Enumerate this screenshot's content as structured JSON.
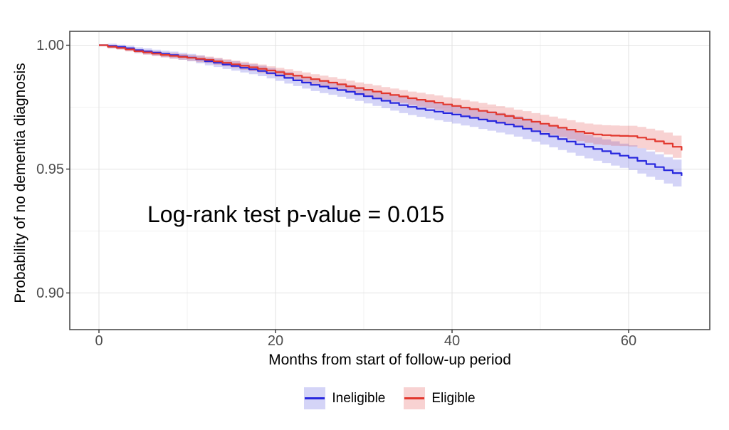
{
  "chart_data": {
    "type": "line",
    "subtype": "kaplan-meier-step-with-confidence-bands",
    "title": "",
    "xlabel": "Months from start of follow-up period",
    "ylabel": "Probability of no dementia diagnosis",
    "annotation": {
      "text": "Log-rank test p-value = 0.015",
      "p_value": 0.015
    },
    "grid": true,
    "legend_position": "bottom",
    "xlim": [
      -3.3,
      69.2
    ],
    "ylim": [
      0.885,
      1.006
    ],
    "x_ticks": [
      {
        "v": 0,
        "label": "0"
      },
      {
        "v": 20,
        "label": "20"
      },
      {
        "v": 40,
        "label": "40"
      },
      {
        "v": 60,
        "label": "60"
      }
    ],
    "y_ticks": [
      {
        "v": 1.0,
        "label": "1.00"
      },
      {
        "v": 0.95,
        "label": "0.95"
      },
      {
        "v": 0.9,
        "label": "0.90"
      }
    ],
    "x_minor": [
      10,
      30,
      50
    ],
    "y_minor": [
      0.975,
      0.925
    ],
    "x_months": {
      "start": 0,
      "step": 1,
      "count": 67
    },
    "series": [
      {
        "name": "Ineligible",
        "color": "#2727DE",
        "fill": "rgba(60,60,220,0.22)",
        "surv": [
          1.0,
          0.9997,
          0.9993,
          0.9988,
          0.998,
          0.9975,
          0.997,
          0.9965,
          0.996,
          0.9955,
          0.995,
          0.9943,
          0.9935,
          0.9929,
          0.9922,
          0.9916,
          0.9909,
          0.9903,
          0.9896,
          0.9887,
          0.9878,
          0.9868,
          0.9858,
          0.9849,
          0.984,
          0.9833,
          0.9826,
          0.9819,
          0.9812,
          0.9803,
          0.9794,
          0.9785,
          0.9776,
          0.9767,
          0.9758,
          0.9751,
          0.9744,
          0.9738,
          0.9732,
          0.9726,
          0.972,
          0.9713,
          0.9707,
          0.97,
          0.9694,
          0.9687,
          0.968,
          0.9672,
          0.9663,
          0.9653,
          0.9642,
          0.9632,
          0.9621,
          0.9611,
          0.96,
          0.959,
          0.9581,
          0.9572,
          0.9563,
          0.9554,
          0.9546,
          0.9533,
          0.952,
          0.9508,
          0.9495,
          0.9484,
          0.9473
        ],
        "ci_half": [
          0.0002,
          0.0009,
          0.0009,
          0.001,
          0.0011,
          0.0012,
          0.0012,
          0.0013,
          0.0014,
          0.0014,
          0.0015,
          0.0016,
          0.0016,
          0.0017,
          0.0018,
          0.0019,
          0.0019,
          0.002,
          0.0021,
          0.0021,
          0.0022,
          0.0023,
          0.0023,
          0.0024,
          0.0025,
          0.0026,
          0.0026,
          0.0027,
          0.0028,
          0.0028,
          0.0029,
          0.003,
          0.003,
          0.0031,
          0.0032,
          0.0033,
          0.0033,
          0.0034,
          0.0035,
          0.0035,
          0.0036,
          0.0037,
          0.0037,
          0.0038,
          0.0039,
          0.004,
          0.004,
          0.0041,
          0.0042,
          0.0042,
          0.0043,
          0.0044,
          0.0044,
          0.0045,
          0.0046,
          0.0047,
          0.0047,
          0.0048,
          0.0049,
          0.0049,
          0.005,
          0.0051,
          0.0051,
          0.0052,
          0.0053,
          0.0054,
          0.0054
        ]
      },
      {
        "name": "Eligible",
        "color": "#E2372D",
        "fill": "rgba(224,50,50,0.22)",
        "surv": [
          1.0,
          0.9994,
          0.9989,
          0.9983,
          0.9976,
          0.9971,
          0.9966,
          0.9961,
          0.9957,
          0.9953,
          0.9949,
          0.9945,
          0.9941,
          0.9935,
          0.9929,
          0.9923,
          0.9917,
          0.9911,
          0.9905,
          0.9898,
          0.9891,
          0.9884,
          0.9877,
          0.987,
          0.9863,
          0.9856,
          0.9849,
          0.9842,
          0.9834,
          0.9827,
          0.982,
          0.9813,
          0.9806,
          0.9799,
          0.9793,
          0.9786,
          0.978,
          0.9774,
          0.9768,
          0.9761,
          0.9755,
          0.9748,
          0.9742,
          0.9735,
          0.9729,
          0.9721,
          0.9714,
          0.9706,
          0.9699,
          0.9691,
          0.9683,
          0.9675,
          0.9667,
          0.9659,
          0.9651,
          0.9645,
          0.964,
          0.9637,
          0.9635,
          0.9634,
          0.9633,
          0.9627,
          0.962,
          0.9612,
          0.9603,
          0.959,
          0.9575
        ],
        "ci_half": [
          0.0002,
          0.0007,
          0.0007,
          0.0008,
          0.0008,
          0.0009,
          0.001,
          0.001,
          0.0011,
          0.0011,
          0.0012,
          0.0013,
          0.0013,
          0.0014,
          0.0014,
          0.0015,
          0.0016,
          0.0016,
          0.0017,
          0.0017,
          0.0018,
          0.0019,
          0.0019,
          0.002,
          0.002,
          0.0021,
          0.0022,
          0.0022,
          0.0023,
          0.0023,
          0.0024,
          0.0025,
          0.0025,
          0.0026,
          0.0026,
          0.0027,
          0.0028,
          0.0028,
          0.0029,
          0.0029,
          0.003,
          0.0031,
          0.0031,
          0.0032,
          0.0032,
          0.0033,
          0.0034,
          0.0034,
          0.0035,
          0.0035,
          0.0036,
          0.0037,
          0.0037,
          0.0038,
          0.0038,
          0.0039,
          0.004,
          0.004,
          0.0041,
          0.0041,
          0.0042,
          0.0043,
          0.0043,
          0.0044,
          0.0044,
          0.0045,
          0.0046
        ]
      }
    ],
    "style": {
      "grid_major": "#E3E3E3",
      "grid_minor": "#F0F0F0",
      "panel_border": "#4D4D4D",
      "tick_mark_color": "#333333",
      "tick_label_color": "#4D4D4D"
    }
  }
}
